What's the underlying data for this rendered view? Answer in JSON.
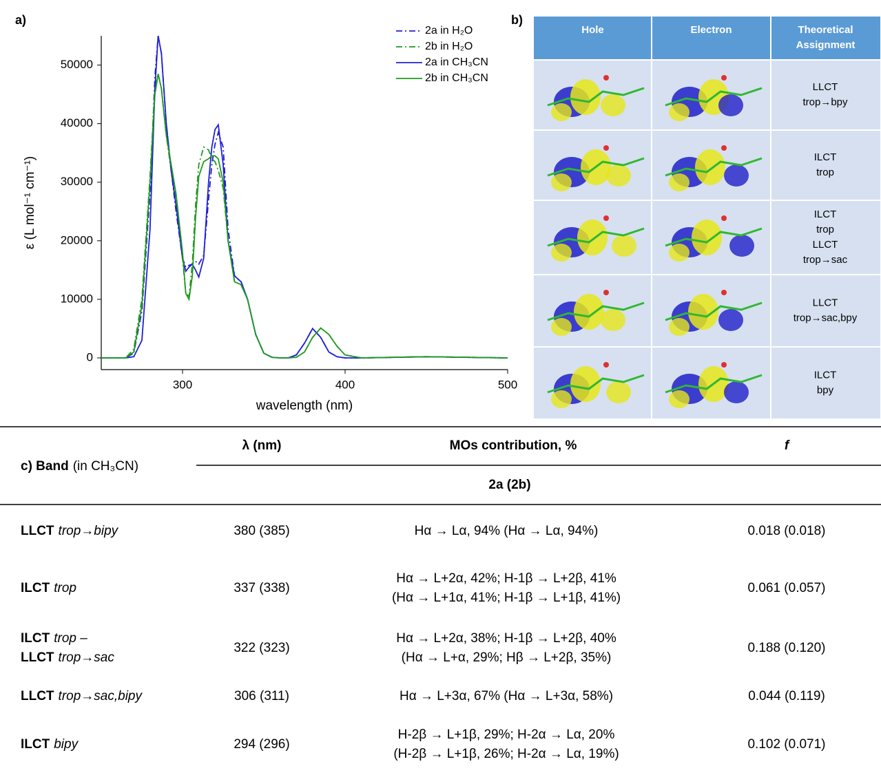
{
  "chart_data": {
    "type": "line",
    "panel_label": "a)",
    "x_label": "wavelength (nm)",
    "y_label": "ε (L mol⁻¹ cm⁻¹)",
    "xlim": [
      250,
      500
    ],
    "ylim": [
      -2000,
      55000
    ],
    "xticks": [
      300,
      400,
      500
    ],
    "yticks": [
      0,
      10000,
      20000,
      30000,
      40000,
      50000
    ],
    "legend": "upper right",
    "x": [
      250,
      265,
      270,
      275,
      280,
      283,
      285,
      287,
      290,
      293,
      296,
      300,
      302,
      304,
      306,
      308,
      310,
      313,
      316,
      318,
      320,
      322,
      325,
      328,
      332,
      336,
      340,
      345,
      350,
      355,
      360,
      365,
      370,
      375,
      380,
      385,
      390,
      395,
      400,
      410,
      450,
      500
    ],
    "series": [
      {
        "name": "2a in H₂O",
        "color": "#1f1fd6",
        "line_style": "dashdot",
        "values": [
          0,
          0,
          800,
          8000,
          28000,
          48000,
          55000,
          52000,
          40000,
          32000,
          25000,
          17000,
          15500,
          15800,
          16000,
          16500,
          16000,
          17500,
          27000,
          33000,
          36500,
          38500,
          36000,
          22000,
          14000,
          13000,
          10000,
          4000,
          800,
          100,
          0,
          0,
          500,
          2500,
          5000,
          3500,
          1000,
          200,
          0,
          0,
          200,
          0
        ]
      },
      {
        "name": "2b in H₂O",
        "color": "#1f9a1f",
        "line_style": "dashdot",
        "values": [
          0,
          0,
          1500,
          10000,
          31000,
          46000,
          48500,
          46000,
          38000,
          32000,
          27000,
          17000,
          11000,
          10500,
          16000,
          26000,
          33000,
          36000,
          35500,
          34000,
          33500,
          32000,
          29000,
          20000,
          13000,
          12500,
          10000,
          4000,
          800,
          100,
          0,
          0,
          100,
          1000,
          3500,
          5100,
          4000,
          2000,
          500,
          0,
          200,
          0
        ]
      },
      {
        "name": "2a in CH₃CN",
        "color": "#1f1fd6",
        "line_style": "solid",
        "values": [
          0,
          0,
          200,
          3000,
          22000,
          46000,
          55000,
          52000,
          40000,
          32000,
          26000,
          17000,
          14800,
          15500,
          16000,
          15000,
          13800,
          17000,
          30000,
          36000,
          39000,
          39800,
          33000,
          20000,
          14000,
          13000,
          10000,
          4000,
          800,
          100,
          0,
          0,
          500,
          2500,
          5000,
          3500,
          1000,
          200,
          0,
          0,
          200,
          0
        ]
      },
      {
        "name": "2b in CH₃CN",
        "color": "#1f9a1f",
        "line_style": "solid",
        "values": [
          0,
          0,
          1000,
          9000,
          30000,
          45000,
          48500,
          46000,
          38000,
          33000,
          28000,
          18000,
          11000,
          10000,
          14000,
          24000,
          31000,
          33500,
          34000,
          34500,
          34500,
          34000,
          30000,
          20000,
          13000,
          12500,
          10000,
          4000,
          800,
          100,
          0,
          0,
          100,
          1000,
          3500,
          5100,
          4000,
          2000,
          500,
          0,
          200,
          0
        ]
      }
    ]
  },
  "panel_b": {
    "label": "b)",
    "headers": [
      [
        "Hole"
      ],
      [
        "Electron"
      ],
      [
        "Theoretical",
        "Assignment"
      ]
    ],
    "assignments": [
      [
        "LLCT",
        "trop→bpy"
      ],
      [
        "ILCT",
        "trop"
      ],
      [
        "ILCT",
        "trop",
        "LLCT",
        "trop→sac"
      ],
      [
        "LLCT",
        "trop→sac,bpy"
      ],
      [
        "ILCT",
        "bpy"
      ]
    ]
  },
  "table": {
    "band_header": {
      "bold": "c) Band",
      "normal": "(in CH₃CN)"
    },
    "headers": [
      "λ (nm)",
      "MOs contribution, %",
      "f"
    ],
    "subheader": "2a (2b)",
    "rows": [
      {
        "band": [
          {
            "b": "LLCT",
            "i": "trop→bipy"
          }
        ],
        "lambda": "380 (385)",
        "mos": [
          "Hα → Lα, 94% (Hα → Lα, 94%)"
        ],
        "f": "0.018 (0.018)"
      },
      {
        "band": [
          {
            "b": "ILCT",
            "i": "trop"
          }
        ],
        "lambda": "337 (338)",
        "mos": [
          "Hα → L+2α, 42%; H-1β → L+2β, 41%",
          "(Hα → L+1α, 41%; H-1β → L+1β, 41%)"
        ],
        "f": "0.061 (0.057)"
      },
      {
        "band": [
          {
            "b": "ILCT",
            "i": "trop –"
          },
          {
            "b": "LLCT",
            "i": "trop→sac"
          }
        ],
        "lambda": "322 (323)",
        "mos": [
          "Hα → L+2α, 38%; H-1β → L+2β, 40%",
          "(Hα → L+α, 29%; Hβ → L+2β, 35%)"
        ],
        "f": "0.188 (0.120)"
      },
      {
        "band": [
          {
            "b": "LLCT",
            "i": "trop→sac,bipy"
          }
        ],
        "lambda": "306 (311)",
        "mos": [
          "Hα → L+3α, 67% (Hα → L+3α, 58%)"
        ],
        "f": "0.044 (0.119)"
      },
      {
        "band": [
          {
            "b": "ILCT",
            "i": "bipy"
          }
        ],
        "lambda": "294 (296)",
        "mos": [
          "H-2β → L+1β, 29%; H-2α → Lα, 20%",
          "(H-2β → L+1β, 26%; H-2α → Lα, 19%)"
        ],
        "f": "0.102 (0.071)"
      }
    ]
  }
}
